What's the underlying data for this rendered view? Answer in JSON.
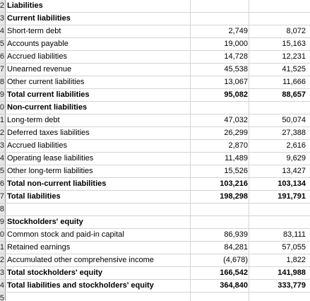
{
  "sheet": {
    "rows": [
      {
        "num": "2",
        "label": "Liabilities",
        "v1": "",
        "v2": "",
        "bold": true
      },
      {
        "num": "3",
        "label": "Current liabilities",
        "v1": "",
        "v2": "",
        "bold": true
      },
      {
        "num": "4",
        "label": "Short-term debt",
        "v1": "2,749",
        "v2": "8,072",
        "bold": false
      },
      {
        "num": "5",
        "label": "Accounts payable",
        "v1": "19,000",
        "v2": "15,163",
        "bold": false
      },
      {
        "num": "6",
        "label": "Accrued liabilities",
        "v1": "14,728",
        "v2": "12,231",
        "bold": false
      },
      {
        "num": "7",
        "label": "Unearned revenue",
        "v1": "45,538",
        "v2": "41,525",
        "bold": false
      },
      {
        "num": "8",
        "label": "Other current liabilities",
        "v1": "13,067",
        "v2": "11,666",
        "bold": false
      },
      {
        "num": "9",
        "label": "Total current liabilities",
        "v1": "95,082",
        "v2": "88,657",
        "bold": true
      },
      {
        "num": "0",
        "label": "Non-current liabilities",
        "v1": "",
        "v2": "",
        "bold": true
      },
      {
        "num": "1",
        "label": "Long-term debt",
        "v1": "47,032",
        "v2": "50,074",
        "bold": false
      },
      {
        "num": "2",
        "label": "Deferred taxes liabilities",
        "v1": "26,299",
        "v2": "27,388",
        "bold": false
      },
      {
        "num": "3",
        "label": "Accrued liabilities",
        "v1": "2,870",
        "v2": "2,616",
        "bold": false
      },
      {
        "num": "4",
        "label": "Operating lease liabilities",
        "v1": "11,489",
        "v2": "9,629",
        "bold": false
      },
      {
        "num": "5",
        "label": "Other long-term liabilities",
        "v1": "15,526",
        "v2": "13,427",
        "bold": false
      },
      {
        "num": "6",
        "label": "Total non-current liabilities",
        "v1": "103,216",
        "v2": "103,134",
        "bold": true
      },
      {
        "num": "7",
        "label": "Total liabilities",
        "v1": "198,298",
        "v2": "191,791",
        "bold": true
      },
      {
        "num": "8",
        "label": "",
        "v1": "",
        "v2": "",
        "bold": false
      },
      {
        "num": "9",
        "label": "Stockholders' equity",
        "v1": "",
        "v2": "",
        "bold": true
      },
      {
        "num": "0",
        "label": "Common stock and paid-in capital",
        "v1": "86,939",
        "v2": "83,111",
        "bold": false
      },
      {
        "num": "1",
        "label": "Retained earnings",
        "v1": "84,281",
        "v2": "57,055",
        "bold": false
      },
      {
        "num": "2",
        "label": "Accumulated other comprehensive income",
        "v1": "(4,678)",
        "v2": "1,822",
        "bold": false
      },
      {
        "num": "3",
        "label": "Total stockholders' equity",
        "v1": "166,542",
        "v2": "141,988",
        "bold": true
      },
      {
        "num": "4",
        "label": "Total liabilities and stockholders' equity",
        "v1": "364,840",
        "v2": "333,779",
        "bold": true
      },
      {
        "num": "5",
        "label": "",
        "v1": "",
        "v2": "",
        "bold": false
      }
    ]
  }
}
